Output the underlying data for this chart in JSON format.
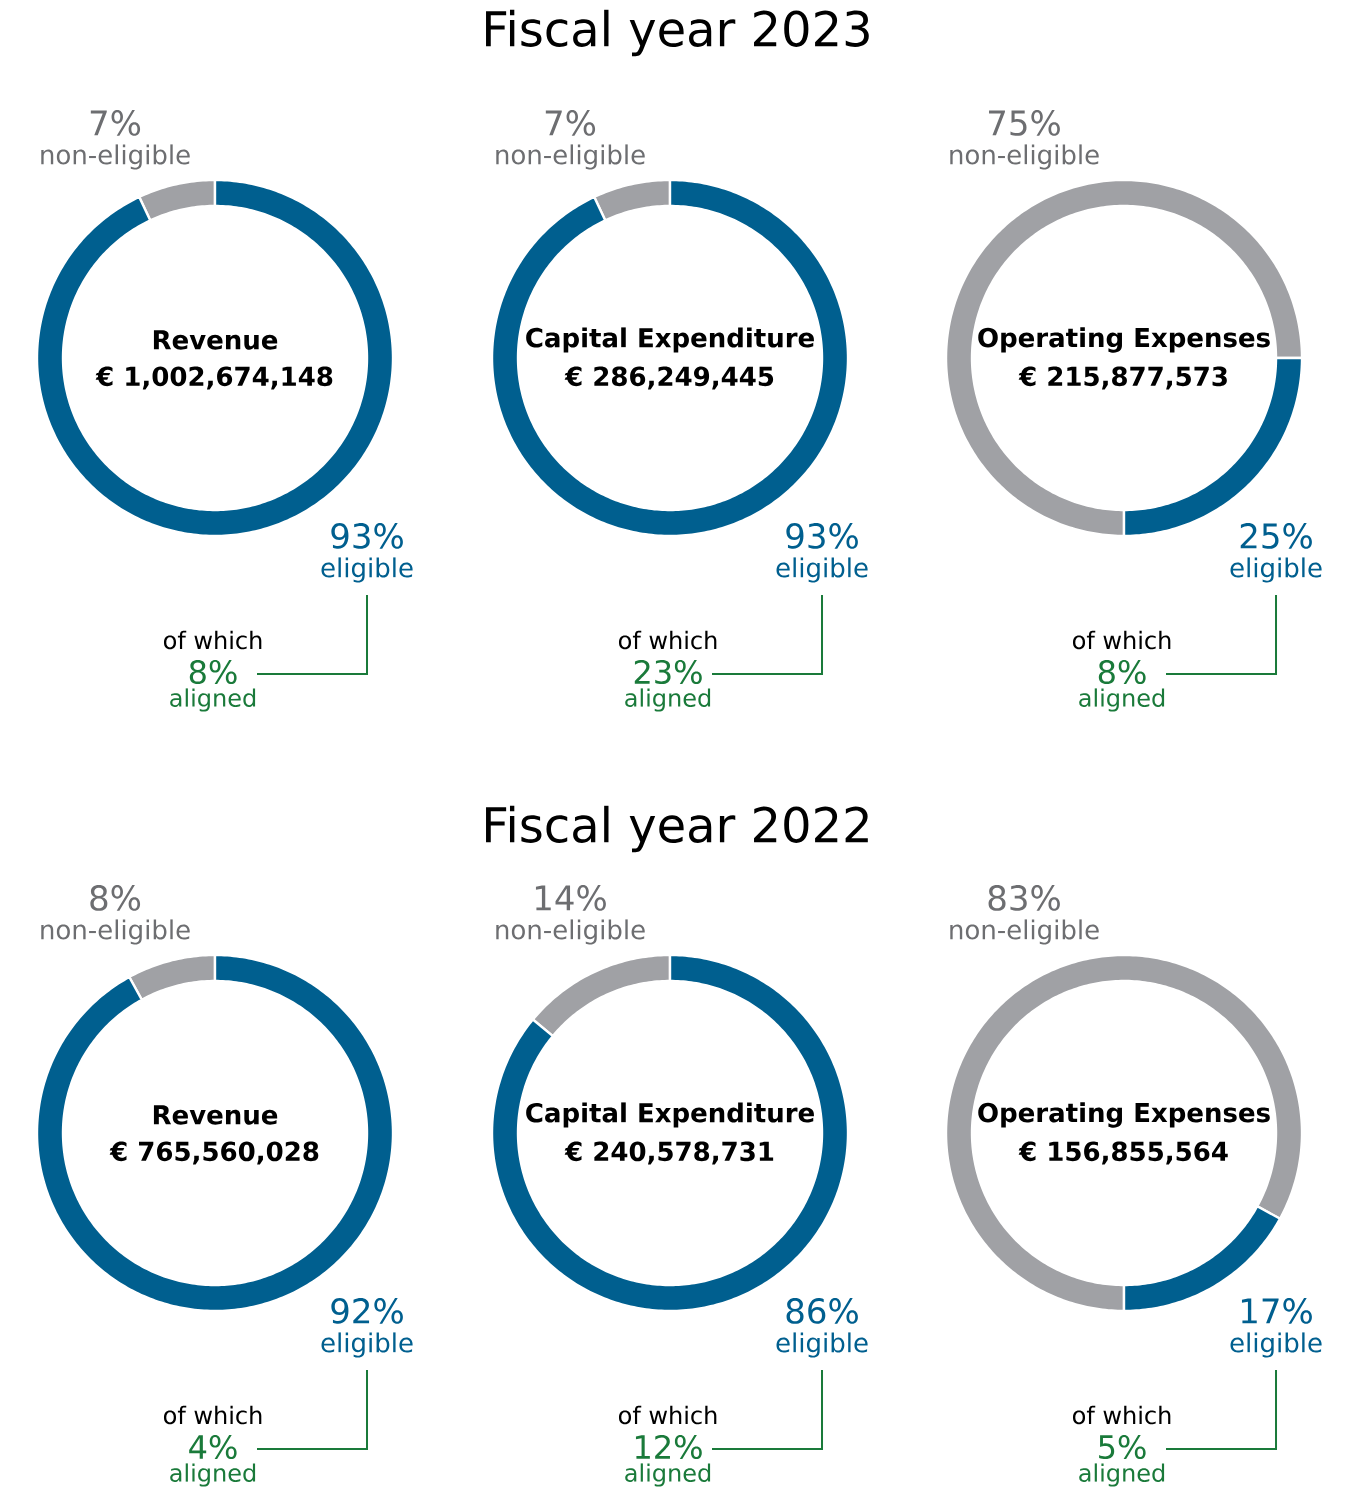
{
  "chart_data": [
    {
      "type": "other",
      "title": "Fiscal year 2023"
    },
    {
      "type": "donut",
      "title": "Revenue",
      "subtitle": "€ 1,002,674,148",
      "categories": [
        "non-eligible",
        "eligible"
      ],
      "values": [
        7,
        93
      ],
      "value_labels": [
        "7%",
        "93%"
      ],
      "colors": [
        "#a0a1a5",
        "#005f8f"
      ],
      "annotations": [
        "of which",
        "8%",
        "aligned"
      ]
    },
    {
      "type": "donut",
      "title": "Capital Expenditure",
      "subtitle": "€ 286,249,445",
      "categories": [
        "non-eligible",
        "eligible"
      ],
      "values": [
        7,
        93
      ],
      "value_labels": [
        "7%",
        "93%"
      ],
      "colors": [
        "#a0a1a5",
        "#005f8f"
      ],
      "annotations": [
        "of which",
        "23%",
        "aligned"
      ]
    },
    {
      "type": "donut",
      "title": "Operating Expenses",
      "subtitle": "€ 215,877,573",
      "categories": [
        "non-eligible",
        "eligible"
      ],
      "values": [
        75,
        25
      ],
      "value_labels": [
        "75%",
        "25%"
      ],
      "colors": [
        "#a0a1a5",
        "#005f8f"
      ],
      "annotations": [
        "of which",
        "8%",
        "aligned"
      ]
    },
    {
      "type": "other",
      "title": "Fiscal year 2022"
    },
    {
      "type": "donut",
      "title": "Revenue",
      "subtitle": "€ 765,560,028",
      "categories": [
        "non-eligible",
        "eligible"
      ],
      "values": [
        8,
        92
      ],
      "value_labels": [
        "8%",
        "92%"
      ],
      "colors": [
        "#a0a1a5",
        "#005f8f"
      ],
      "annotations": [
        "of which",
        "4%",
        "aligned"
      ]
    },
    {
      "type": "donut",
      "title": "Capital Expenditure",
      "subtitle": "€ 240,578,731",
      "categories": [
        "non-eligible",
        "eligible"
      ],
      "values": [
        14,
        86
      ],
      "value_labels": [
        "14%",
        "86%"
      ],
      "colors": [
        "#a0a1a5",
        "#005f8f"
      ],
      "annotations": [
        "of which",
        "12%",
        "aligned"
      ]
    },
    {
      "type": "donut",
      "title": "Operating Expenses",
      "subtitle": "€ 156,855,564",
      "categories": [
        "non-eligible",
        "eligible"
      ],
      "values": [
        83,
        17
      ],
      "value_labels": [
        "83%",
        "17%"
      ],
      "colors": [
        "#a0a1a5",
        "#005f8f"
      ],
      "annotations": [
        "of which",
        "5%",
        "aligned"
      ]
    }
  ]
}
